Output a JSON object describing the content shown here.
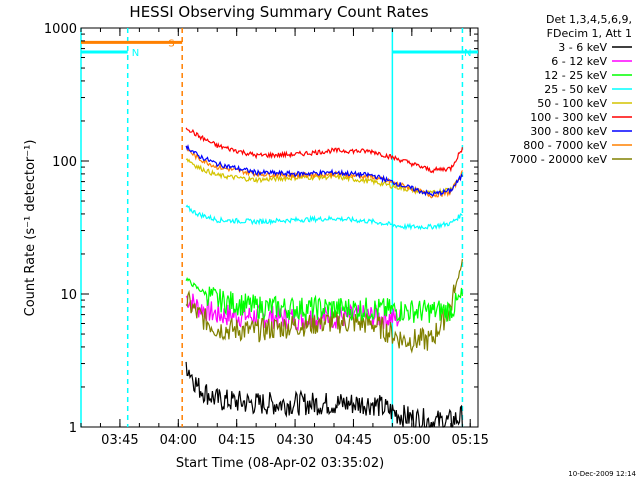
{
  "chart_data": {
    "type": "line",
    "title": "HESSI Observing Summary Count Rates",
    "xlabel": "Start Time (08-Apr-02 03:35:02)",
    "ylabel": "Count Rate (s⁻¹ detector⁻¹)",
    "y_scale": "log",
    "ylim": [
      1,
      1000
    ],
    "xlim": [
      "03:35",
      "05:17"
    ],
    "x_ticks": [
      "03:45",
      "04:00",
      "04:15",
      "04:30",
      "04:45",
      "05:00",
      "05:15"
    ],
    "y_ticks": [
      "1",
      "10",
      "100",
      "1000"
    ],
    "legend": {
      "placement": "outside-right",
      "header": [
        "Det 1,3,4,5,6,9,",
        "FDecim 1, Att 1"
      ]
    },
    "series": [
      {
        "name": "3 - 6 keV",
        "color": "#000000",
        "x": [
          "04:02",
          "04:05",
          "04:10",
          "04:20",
          "04:30",
          "04:40",
          "04:50",
          "04:58",
          "05:05",
          "05:10",
          "05:13"
        ],
        "values": [
          3,
          2,
          1.6,
          1.5,
          1.5,
          1.5,
          1.5,
          1.2,
          1.1,
          1.1,
          1.2
        ]
      },
      {
        "name": "6 - 12 keV",
        "color": "#ff00ff",
        "x": [
          "04:02",
          "04:05",
          "04:10",
          "04:20",
          "04:30",
          "04:40",
          "04:50",
          "04:57"
        ],
        "values": [
          9.5,
          8,
          7,
          6.8,
          6.6,
          6.7,
          6.8,
          6.5
        ]
      },
      {
        "name": "12 - 25 keV",
        "color": "#00ff00",
        "x": [
          "04:02",
          "04:05",
          "04:10",
          "04:20",
          "04:30",
          "04:40",
          "04:50",
          "04:58",
          "05:05",
          "05:10",
          "05:13"
        ],
        "values": [
          13,
          11,
          9,
          8,
          7.8,
          7.8,
          7.7,
          7.5,
          7.4,
          7.6,
          9.5
        ]
      },
      {
        "name": "25 - 50 keV",
        "color": "#00ffff",
        "x": [
          "04:02",
          "04:05",
          "04:10",
          "04:20",
          "04:30",
          "04:40",
          "04:50",
          "04:58",
          "05:05",
          "05:10",
          "05:13"
        ],
        "values": [
          45,
          40,
          36,
          35,
          36,
          37,
          35,
          32,
          32,
          34,
          40
        ]
      },
      {
        "name": "50 - 100 keV",
        "color": "#d4c400",
        "x": [
          "04:02",
          "04:05",
          "04:10",
          "04:20",
          "04:30",
          "04:40",
          "04:50",
          "04:58",
          "05:05",
          "05:10",
          "05:13"
        ],
        "values": [
          105,
          90,
          78,
          72,
          75,
          76,
          70,
          62,
          57,
          62,
          80
        ]
      },
      {
        "name": "100 - 300 keV",
        "color": "#ff0000",
        "x": [
          "04:02",
          "04:05",
          "04:10",
          "04:20",
          "04:30",
          "04:40",
          "04:50",
          "04:58",
          "05:05",
          "05:10",
          "05:13"
        ],
        "values": [
          180,
          155,
          130,
          110,
          112,
          120,
          118,
          100,
          85,
          88,
          125
        ]
      },
      {
        "name": "300 - 800 keV",
        "color": "#0000ff",
        "x": [
          "04:02",
          "04:05",
          "04:10",
          "04:20",
          "04:30",
          "04:40",
          "04:50",
          "04:58",
          "05:05",
          "05:10",
          "05:13"
        ],
        "values": [
          130,
          110,
          95,
          82,
          80,
          82,
          78,
          65,
          56,
          60,
          78
        ]
      },
      {
        "name": "800 - 7000 keV",
        "color": "#ff8000",
        "x": [
          "04:02",
          "04:05",
          "04:10",
          "04:20",
          "04:30",
          "04:40",
          "04:50",
          "04:58",
          "05:05",
          "05:10",
          "05:13"
        ],
        "values": [
          125,
          105,
          90,
          80,
          78,
          80,
          76,
          65,
          55,
          58,
          82
        ]
      },
      {
        "name": "7000 - 20000 keV",
        "color": "#808000",
        "x": [
          "04:02",
          "04:05",
          "04:10",
          "04:20",
          "04:30",
          "04:40",
          "04:50",
          "04:58",
          "05:05",
          "05:10",
          "05:13"
        ],
        "values": [
          9,
          7,
          5.5,
          5.3,
          5.8,
          6.2,
          6,
          4.5,
          4.5,
          8,
          18
        ]
      }
    ],
    "annotations": [
      {
        "text": "N",
        "color": "#00ffff",
        "value": 660,
        "from": "03:35",
        "to": "03:47"
      },
      {
        "text": "N",
        "color": "#00ffff",
        "value": 660,
        "from": "04:55",
        "to": "05:17"
      },
      {
        "text": "S",
        "color": "#ff8000",
        "value": 780,
        "from": "03:35",
        "to": "04:01"
      }
    ],
    "vertical_lines": [
      {
        "x": "03:35",
        "color": "#00ffff",
        "style": "solid"
      },
      {
        "x": "03:47",
        "color": "#00ffff",
        "style": "dashed"
      },
      {
        "x": "04:01",
        "color": "#ff8000",
        "style": "dashed"
      },
      {
        "x": "04:55",
        "color": "#00ffff",
        "style": "solid"
      },
      {
        "x": "05:13",
        "color": "#00ffff",
        "style": "dashed"
      }
    ],
    "timestamp": "10-Dec-2009 12:14"
  }
}
